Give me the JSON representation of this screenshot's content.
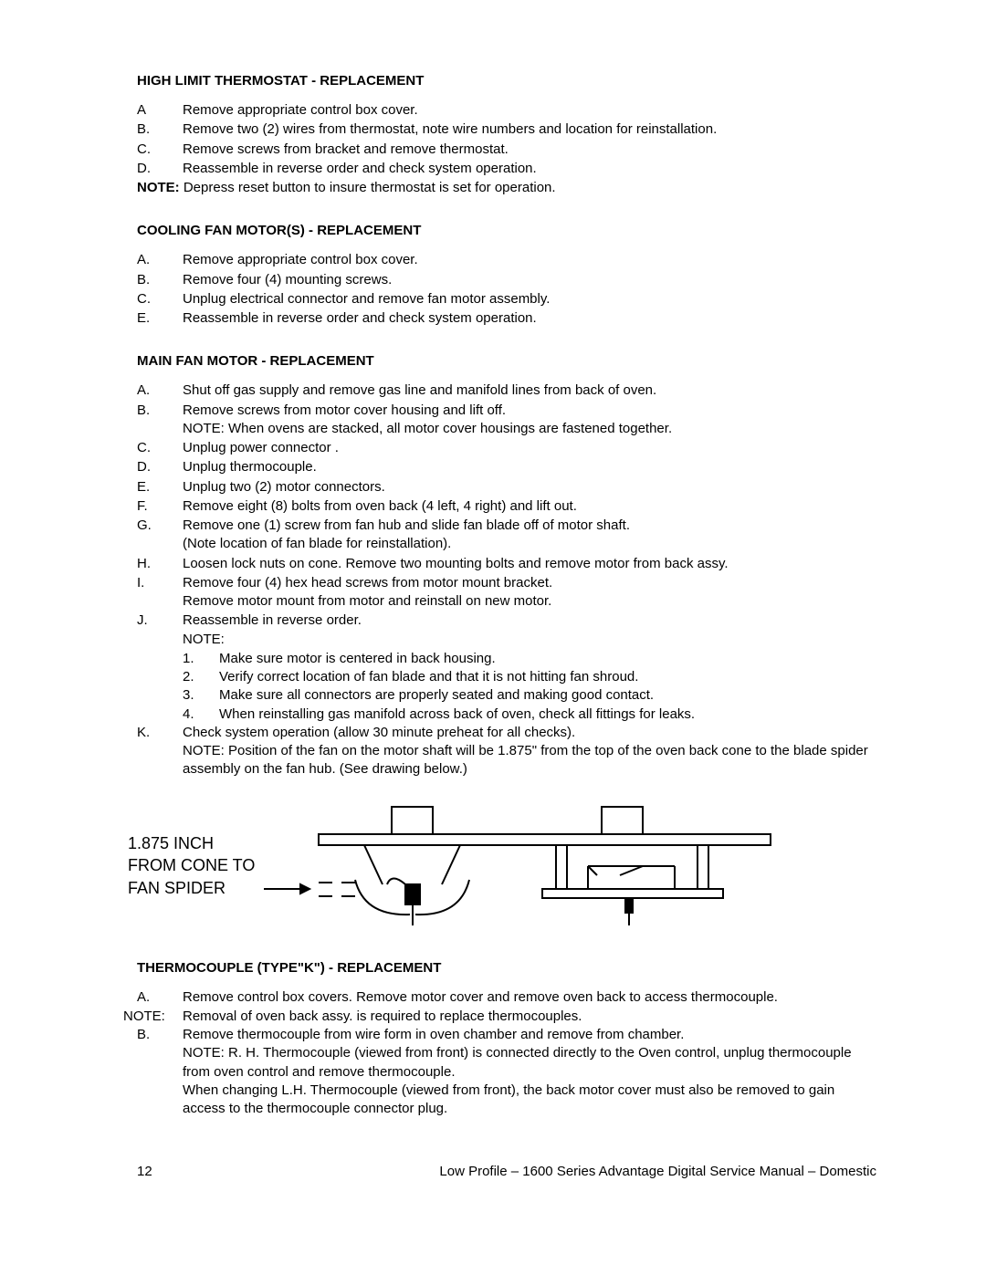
{
  "sections": {
    "highLimit": {
      "title": "HIGH LIMIT THERMOSTAT - REPLACEMENT",
      "items": [
        {
          "l": "A",
          "t": "Remove appropriate control box cover."
        },
        {
          "l": "B.",
          "t": "Remove two (2) wires from thermostat, note wire numbers and location for reinstallation."
        },
        {
          "l": "C.",
          "t": "Remove screws from bracket and remove thermostat."
        },
        {
          "l": "D.",
          "t": "Reassemble in reverse order and check system operation."
        }
      ],
      "noteBold": "NOTE:",
      "noteText": " Depress reset button to insure thermostat is set for operation."
    },
    "cooling": {
      "title": "COOLING FAN MOTOR(S)  - REPLACEMENT",
      "items": [
        {
          "l": "A.",
          "t": "Remove appropriate control box cover."
        },
        {
          "l": "B.",
          "t": "Remove four (4) mounting screws."
        },
        {
          "l": "C.",
          "t": "Unplug electrical connector and remove fan motor assembly."
        },
        {
          "l": "E.",
          "t": "Reassemble in reverse order and check system operation."
        }
      ]
    },
    "mainFan": {
      "title": "MAIN FAN MOTOR - REPLACEMENT",
      "items": [
        {
          "l": "A.",
          "t": "Shut off gas supply and remove gas line and manifold lines from back of oven."
        },
        {
          "l": "B.",
          "t": "Remove screws from motor cover housing and lift off.\nNOTE: When ovens are stacked, all motor cover housings are fastened together."
        },
        {
          "l": "C.",
          "t": "Unplug power connector ."
        },
        {
          "l": "D.",
          "t": "Unplug thermocouple."
        },
        {
          "l": "E.",
          "t": "Unplug two (2) motor connectors."
        },
        {
          "l": "F.",
          "t": "Remove eight (8) bolts from oven back (4 left, 4 right) and lift out."
        },
        {
          "l": "G.",
          "t": "Remove one (1) screw from fan hub and slide fan blade off of motor shaft.\n(Note location of fan blade for reinstallation)."
        },
        {
          "l": "H.",
          "t": "Loosen lock nuts on cone.  Remove two mounting bolts and remove motor from back assy."
        },
        {
          "l": "I.",
          "t": "Remove four (4) hex head screws from motor mount bracket.\nRemove motor mount from motor and reinstall on new motor."
        },
        {
          "l": "J.",
          "t": "Reassemble in reverse order.\nNOTE:"
        }
      ],
      "subitems": [
        {
          "n": "1.",
          "t": "Make sure motor is centered in back housing."
        },
        {
          "n": "2.",
          "t": "Verify correct location of fan blade and that it is not hitting fan shroud."
        },
        {
          "n": "3.",
          "t": "Make sure all connectors are properly seated and making good contact."
        },
        {
          "n": "4.",
          "t": "When reinstalling gas manifold across back of oven, check all fittings for leaks."
        }
      ],
      "itemsAfter": [
        {
          "l": "K.",
          "t": "Check system operation (allow 30 minute preheat for all checks).\nNOTE: Position of the fan on the motor shaft will be 1.875\" from the top of the oven back cone to the blade spider assembly on the fan hub. (See drawing below.)"
        }
      ]
    },
    "diagram": {
      "label": "1.875 INCH\nFROM CONE TO\nFAN SPIDER"
    },
    "thermocouple": {
      "title": "THERMOCOUPLE (TYPE\"K\") - REPLACEMENT",
      "items": [
        {
          "l": "A.",
          "t": "Remove control box covers.  Remove motor cover and remove oven back to access thermocouple."
        }
      ],
      "notePrefix": "NOTE:",
      "noteText": "Removal of oven back assy. is required to replace thermocouples.",
      "itemsAfter": [
        {
          "l": "B.",
          "t": "Remove thermocouple from wire form in oven chamber and remove from chamber.\nNOTE: R. H. Thermocouple (viewed from front) is connected directly to the Oven control, unplug thermocouple from oven control and remove thermocouple.\nWhen changing L.H. Thermocouple (viewed from front), the back motor cover must also be removed to gain access to the thermocouple connector plug."
        }
      ]
    }
  },
  "footer": {
    "pageNum": "12",
    "right": "Low Profile – 1600 Series Advantage Digital Service Manual – Domestic"
  }
}
